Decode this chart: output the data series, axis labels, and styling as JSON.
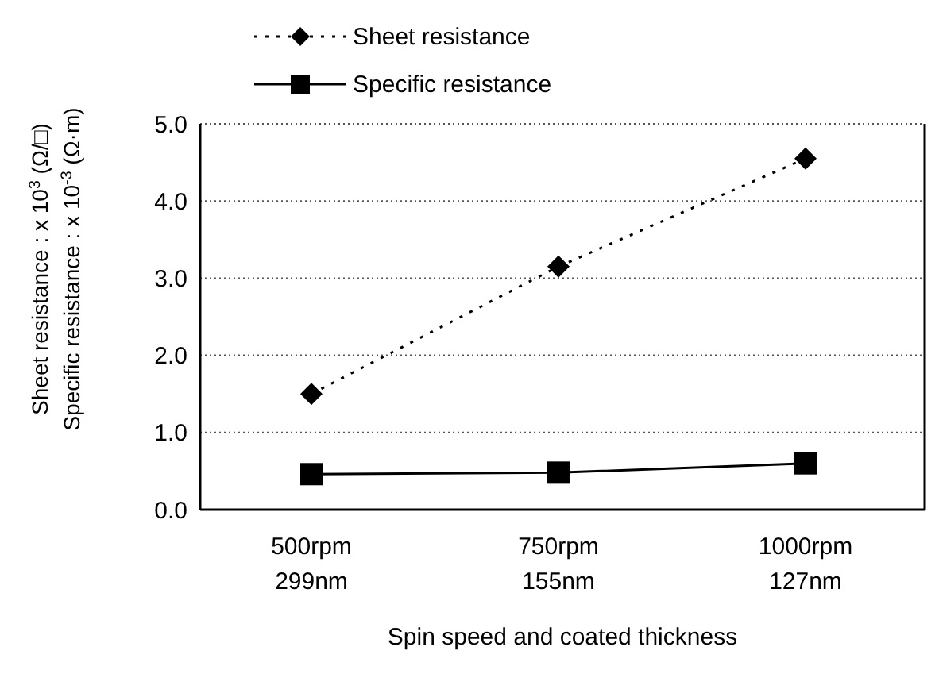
{
  "chart_data": {
    "type": "line",
    "xlabel": "Spin speed and coated thickness",
    "ylabel": "Sheet resistance : x 10$^{3}$ (Ω/□)\nSpecific resistance : x 10$^{-3}$ (Ω·m)",
    "categories": [
      "500rpm\n299nm",
      "750rpm\n155nm",
      "1000rpm\n127nm"
    ],
    "series": [
      {
        "name": "Sheet resistance",
        "color": "#000000",
        "values": [
          1.5,
          3.15,
          4.55
        ],
        "marker": "diamond",
        "line_style": "dotted"
      },
      {
        "name": "Specific resistance",
        "color": "#000000",
        "values": [
          0.46,
          0.48,
          0.6
        ],
        "marker": "square",
        "line_style": "solid"
      }
    ],
    "ylim": [
      0,
      5
    ],
    "yticks": [
      {
        "value": 0,
        "label": "0.0"
      },
      {
        "value": 1,
        "label": "1.0"
      },
      {
        "value": 2,
        "label": "2.0"
      },
      {
        "value": 3,
        "label": "3.0"
      },
      {
        "value": 4,
        "label": "4.0"
      },
      {
        "value": 5,
        "label": "5.0"
      }
    ],
    "grid": "y",
    "legend": "top"
  }
}
